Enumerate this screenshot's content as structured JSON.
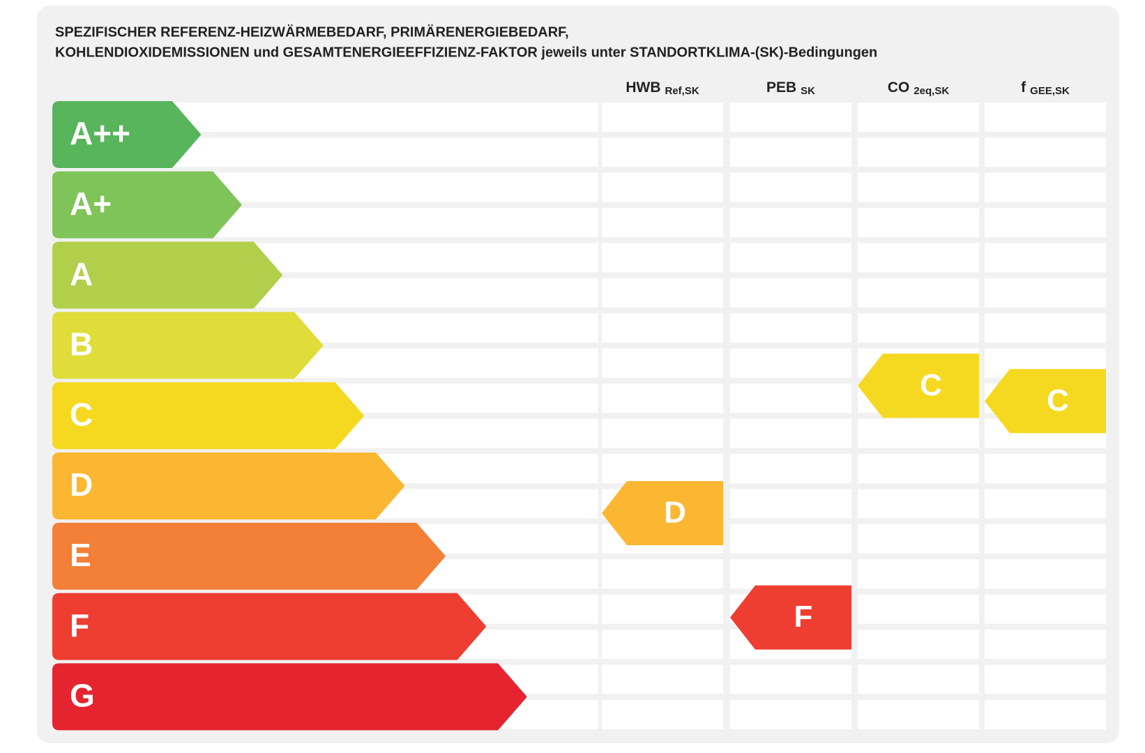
{
  "title": {
    "line1": "SPEZIFISCHER REFERENZ-HEIZWÄRMEBEDARF, PRIMÄRENERGIEBEDARF,",
    "line2": "KOHLENDIOXIDEMISSIONEN und GESAMTENERGIEEFFIZIENZ-FAKTOR jeweils unter STANDORTKLIMA-(SK)-Bedingungen"
  },
  "classes": [
    {
      "label": "A++",
      "color": "#58b55c"
    },
    {
      "label": "A+",
      "color": "#7fc458"
    },
    {
      "label": "A",
      "color": "#b1cf4b"
    },
    {
      "label": "B",
      "color": "#e0dd3b"
    },
    {
      "label": "C",
      "color": "#f5d920"
    },
    {
      "label": "D",
      "color": "#fbb732"
    },
    {
      "label": "E",
      "color": "#f47f36"
    },
    {
      "label": "F",
      "color": "#ee3d31"
    },
    {
      "label": "G",
      "color": "#e52430"
    }
  ],
  "columns": [
    {
      "label": "HWB",
      "sub": "Ref,SK",
      "rating": "D"
    },
    {
      "label": "PEB",
      "sub": "SK",
      "rating": "F"
    },
    {
      "label": "CO",
      "sub": "2eq,SK",
      "rating": "C"
    },
    {
      "label": "f",
      "sub": "GEE,SK",
      "rating": "C"
    }
  ]
}
